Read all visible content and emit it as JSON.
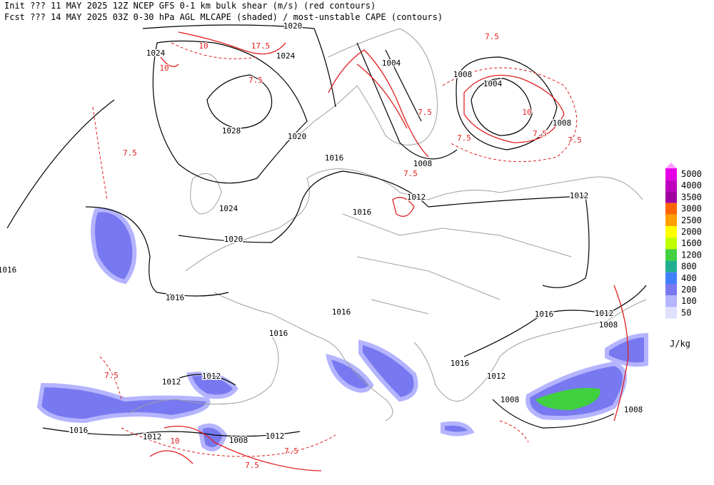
{
  "header": {
    "line1": "Init  ??? 11 MAY 2025 12Z  NCEP GFS 0-1 km bulk shear (m/s) (red contours)",
    "line2": "Fcst ??? 14 MAY 2025 03Z  0-30 hPa AGL MLCAPE (shaded) / most-unstable CAPE (contours)"
  },
  "map": {
    "isobar_labels": [
      "1020",
      "1024",
      "1024",
      "1028",
      "1020",
      "1016",
      "1024",
      "1020",
      "1016",
      "1016",
      "1016",
      "1016",
      "1016",
      "1012",
      "1012",
      "1004",
      "1008",
      "1004",
      "1008",
      "1008",
      "1016",
      "1012",
      "1008",
      "1016",
      "1012",
      "1008",
      "1008",
      "1012",
      "1012",
      "1016",
      "1012",
      "1008",
      "1012"
    ],
    "shear_labels": [
      "7.5",
      "10",
      "17.5",
      "10",
      "7.5",
      "7.5",
      "7.5",
      "10",
      "7.5",
      "7.5",
      "7.5",
      "7.5",
      "7.5",
      "10",
      "7.5",
      "7.5"
    ]
  },
  "legend": {
    "unit": "J/kg",
    "items": [
      {
        "label": "5000",
        "color": "#e800e8"
      },
      {
        "label": "4000",
        "color": "#c000c0"
      },
      {
        "label": "3500",
        "color": "#a000a0"
      },
      {
        "label": "3000",
        "color": "#ff6400"
      },
      {
        "label": "2500",
        "color": "#ffa000"
      },
      {
        "label": "2000",
        "color": "#ffff00"
      },
      {
        "label": "1600",
        "color": "#c0ff00"
      },
      {
        "label": "1200",
        "color": "#40d040"
      },
      {
        "label": "800",
        "color": "#20b090"
      },
      {
        "label": "400",
        "color": "#4080ff"
      },
      {
        "label": "200",
        "color": "#7878f0"
      },
      {
        "label": "100",
        "color": "#b4b4ff"
      },
      {
        "label": "50",
        "color": "#e0e0ff"
      }
    ]
  }
}
